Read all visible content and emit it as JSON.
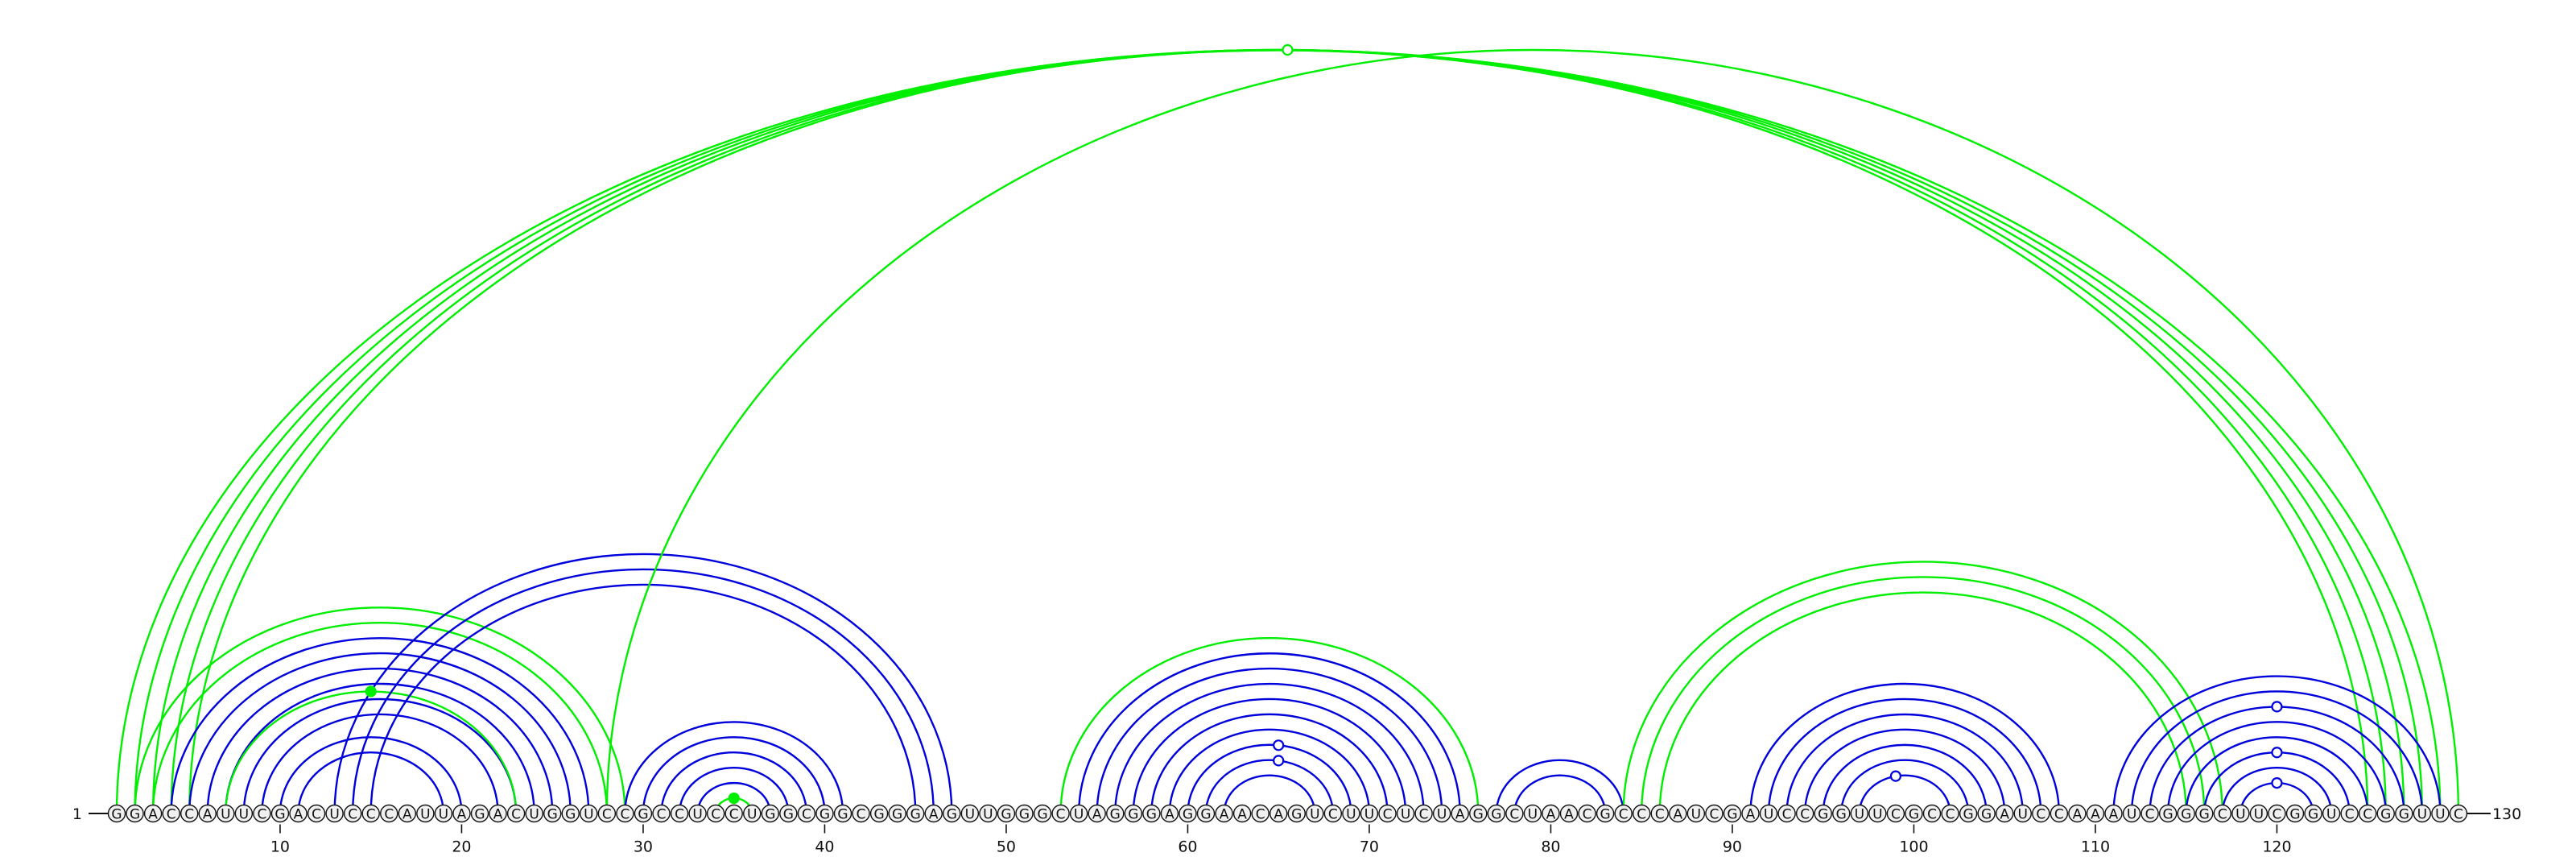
{
  "sequence": {
    "text": "GGACCAUUCGACUCCCAUUAGACUGGUCCGCCUCCUGGCGGCGGGAGUUGGGCUAGGGAGGAACAGUCUUCUCUAGGCUAACGCCCAUCGAUCCGGUUCGCCGGAUCCAAAUCGGGCUUCGGUCCGGUUC",
    "start_label": "1",
    "end_label": "130",
    "ticks": [
      "10",
      "20",
      "30",
      "40",
      "50",
      "60",
      "70",
      "80",
      "90",
      "100",
      "110",
      "120"
    ],
    "tick_positions": [
      10,
      20,
      30,
      40,
      50,
      60,
      70,
      80,
      90,
      100,
      110,
      120
    ]
  },
  "colors": {
    "blue": "#0000dd",
    "green": "#00ee00",
    "ink": "#111111",
    "circle_fill": "#f0f0f0"
  },
  "arcs": [
    {
      "i": 1,
      "j": 129,
      "color": "green"
    },
    {
      "i": 2,
      "j": 128,
      "color": "green"
    },
    {
      "i": 3,
      "j": 127,
      "color": "green"
    },
    {
      "i": 4,
      "j": 126,
      "color": "green"
    },
    {
      "i": 5,
      "j": 125,
      "color": "green"
    },
    {
      "i": 2,
      "j": 29,
      "color": "green"
    },
    {
      "i": 3,
      "j": 28,
      "color": "green"
    },
    {
      "i": 4,
      "j": 27,
      "color": "blue"
    },
    {
      "i": 5,
      "j": 26,
      "color": "blue"
    },
    {
      "i": 6,
      "j": 25,
      "color": "blue"
    },
    {
      "i": 7,
      "j": 24,
      "color": "blue"
    },
    {
      "i": 8,
      "j": 23,
      "color": "blue"
    },
    {
      "i": 9,
      "j": 22,
      "color": "blue"
    },
    {
      "i": 7,
      "j": 23,
      "color": "green"
    },
    {
      "i": 10,
      "j": 20,
      "color": "blue"
    },
    {
      "i": 11,
      "j": 19,
      "color": "blue"
    },
    {
      "i": 13,
      "j": 47,
      "color": "blue"
    },
    {
      "i": 14,
      "j": 46,
      "color": "blue"
    },
    {
      "i": 15,
      "j": 45,
      "color": "blue"
    },
    {
      "i": 29,
      "j": 41,
      "color": "blue"
    },
    {
      "i": 30,
      "j": 40,
      "color": "blue"
    },
    {
      "i": 31,
      "j": 39,
      "color": "blue"
    },
    {
      "i": 32,
      "j": 38,
      "color": "blue"
    },
    {
      "i": 33,
      "j": 37,
      "color": "blue"
    },
    {
      "i": 34,
      "j": 36,
      "color": "green"
    },
    {
      "i": 53,
      "j": 76,
      "color": "green"
    },
    {
      "i": 54,
      "j": 75,
      "color": "blue"
    },
    {
      "i": 55,
      "j": 74,
      "color": "blue"
    },
    {
      "i": 56,
      "j": 73,
      "color": "blue"
    },
    {
      "i": 57,
      "j": 72,
      "color": "blue"
    },
    {
      "i": 58,
      "j": 71,
      "color": "blue"
    },
    {
      "i": 59,
      "j": 70,
      "color": "blue"
    },
    {
      "i": 60,
      "j": 69,
      "color": "blue"
    },
    {
      "i": 61,
      "j": 68,
      "color": "blue"
    },
    {
      "i": 62,
      "j": 67,
      "color": "blue"
    },
    {
      "i": 77,
      "j": 84,
      "color": "blue"
    },
    {
      "i": 78,
      "j": 83,
      "color": "blue"
    },
    {
      "i": 84,
      "j": 117,
      "color": "green"
    },
    {
      "i": 85,
      "j": 116,
      "color": "green"
    },
    {
      "i": 86,
      "j": 115,
      "color": "green"
    },
    {
      "i": 91,
      "j": 108,
      "color": "blue"
    },
    {
      "i": 92,
      "j": 107,
      "color": "blue"
    },
    {
      "i": 93,
      "j": 106,
      "color": "blue"
    },
    {
      "i": 94,
      "j": 105,
      "color": "blue"
    },
    {
      "i": 95,
      "j": 104,
      "color": "blue"
    },
    {
      "i": 96,
      "j": 103,
      "color": "blue"
    },
    {
      "i": 97,
      "j": 102,
      "color": "blue"
    },
    {
      "i": 111,
      "j": 129,
      "color": "blue"
    },
    {
      "i": 112,
      "j": 128,
      "color": "blue"
    },
    {
      "i": 113,
      "j": 127,
      "color": "blue"
    },
    {
      "i": 114,
      "j": 126,
      "color": "blue"
    },
    {
      "i": 115,
      "j": 125,
      "color": "blue"
    },
    {
      "i": 116,
      "j": 124,
      "color": "blue"
    },
    {
      "i": 117,
      "j": 123,
      "color": "blue"
    },
    {
      "i": 118,
      "j": 122,
      "color": "blue"
    },
    {
      "i": 28,
      "j": 130,
      "color": "green"
    }
  ],
  "markers": [
    {
      "at": 65.5,
      "arc": [
        1,
        130
      ],
      "color": "green",
      "filled": false
    },
    {
      "at": 15,
      "arc": [
        7,
        23
      ],
      "color": "green",
      "filled": true
    },
    {
      "at": 35,
      "arc": [
        34,
        36
      ],
      "color": "green",
      "filled": true
    },
    {
      "at": 65,
      "arc": [
        60,
        69
      ],
      "color": "blue",
      "filled": false
    },
    {
      "at": 65,
      "arc": [
        61,
        68
      ],
      "color": "blue",
      "filled": false
    },
    {
      "at": 99,
      "arc": [
        97,
        102
      ],
      "color": "blue",
      "filled": false
    },
    {
      "at": 120,
      "arc": [
        118,
        122
      ],
      "color": "blue",
      "filled": false
    },
    {
      "at": 120,
      "arc": [
        116,
        124
      ],
      "color": "blue",
      "filled": false
    },
    {
      "at": 120,
      "arc": [
        113,
        127
      ],
      "color": "blue",
      "filled": false
    }
  ]
}
